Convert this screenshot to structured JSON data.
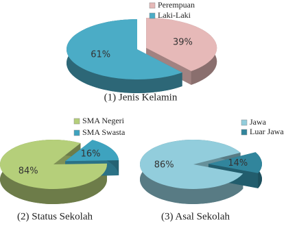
{
  "chart_data": [
    {
      "type": "pie",
      "title": "(1) Jenis Kelamin",
      "categories": [
        "Perempuan",
        "Laki-Laki"
      ],
      "values": [
        39,
        61
      ],
      "value_labels": [
        "39%",
        "61%"
      ],
      "colors": [
        "#e6b9b8",
        "#4bacc6"
      ]
    },
    {
      "type": "pie",
      "title": "(2) Status Sekolah",
      "categories": [
        "SMA Negeri",
        "SMA Swasta"
      ],
      "values": [
        84,
        16
      ],
      "value_labels": [
        "84%",
        "16%"
      ],
      "colors": [
        "#b5cf7a",
        "#3ea3bf"
      ]
    },
    {
      "type": "pie",
      "title": "(3) Asal Sekolah",
      "categories": [
        "Jawa",
        "Luar Jawa"
      ],
      "values": [
        86,
        14
      ],
      "value_labels": [
        "86%",
        "14%"
      ],
      "colors": [
        "#92cddc",
        "#31859c"
      ]
    }
  ]
}
